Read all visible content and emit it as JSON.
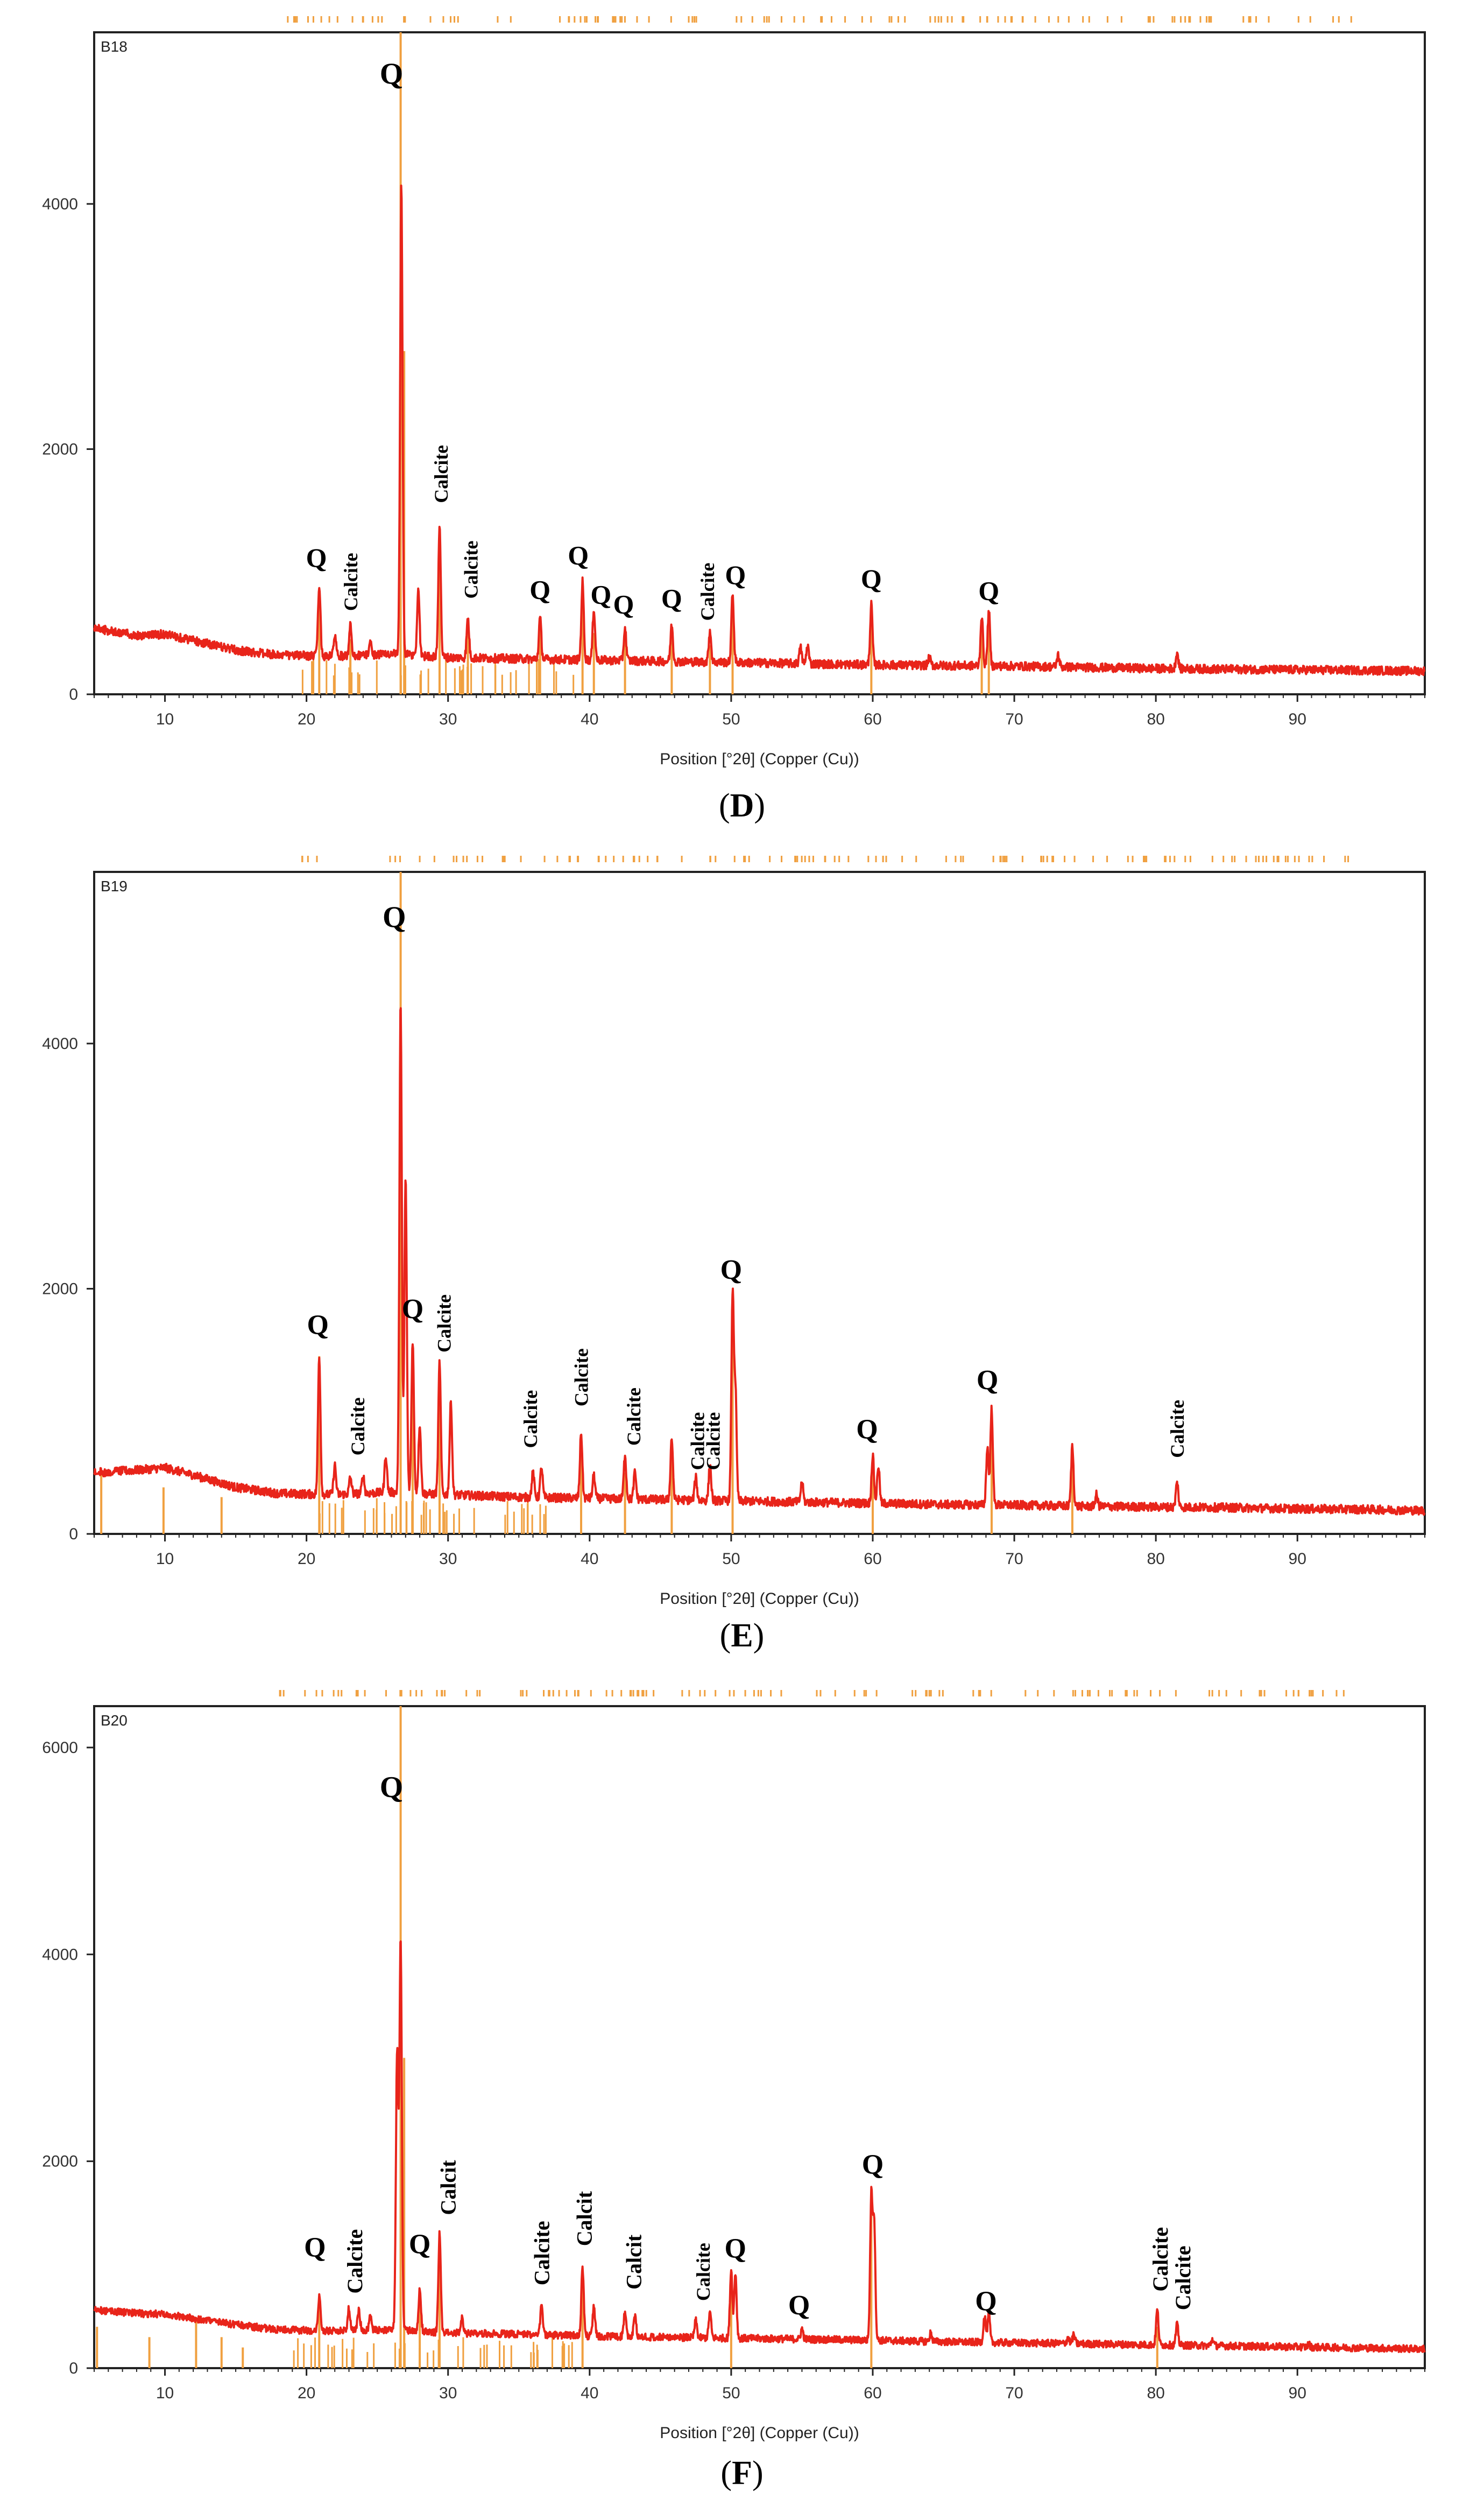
{
  "charts": [
    {
      "id": "D",
      "sample": "B18",
      "caption_letter": "D",
      "xlabel": "Position [°2θ] (Copper (Cu))",
      "chart_data": {
        "type": "line",
        "title": "B18",
        "xlabel": "Position [°2θ] (Copper (Cu))",
        "ylabel": "",
        "xlim": [
          5,
          99
        ],
        "ylim": [
          0,
          5400
        ],
        "xticks": [
          10,
          20,
          30,
          40,
          50,
          60,
          70,
          80,
          90
        ],
        "yticks": [
          0,
          2000,
          4000
        ],
        "baseline": [
          [
            5,
            540
          ],
          [
            8,
            480
          ],
          [
            10,
            490
          ],
          [
            12,
            440
          ],
          [
            15,
            360
          ],
          [
            18,
            320
          ],
          [
            22,
            310
          ],
          [
            26,
            330
          ],
          [
            30,
            300
          ],
          [
            35,
            290
          ],
          [
            40,
            280
          ],
          [
            45,
            270
          ],
          [
            50,
            260
          ],
          [
            55,
            250
          ],
          [
            60,
            240
          ],
          [
            65,
            235
          ],
          [
            70,
            230
          ],
          [
            75,
            220
          ],
          [
            80,
            210
          ],
          [
            85,
            205
          ],
          [
            90,
            200
          ],
          [
            95,
            195
          ],
          [
            99,
            190
          ]
        ],
        "peaks": [
          [
            20.9,
            900
          ],
          [
            22.0,
            480
          ],
          [
            23.1,
            560
          ],
          [
            24.5,
            420
          ],
          [
            26.7,
            4150
          ],
          [
            27.9,
            850
          ],
          [
            29.4,
            1400
          ],
          [
            31.4,
            620
          ],
          [
            36.5,
            620
          ],
          [
            39.5,
            920
          ],
          [
            40.3,
            700
          ],
          [
            42.5,
            540
          ],
          [
            45.8,
            560
          ],
          [
            48.5,
            520
          ],
          [
            50.1,
            820
          ],
          [
            54.9,
            380
          ],
          [
            55.4,
            400
          ],
          [
            59.9,
            730
          ],
          [
            64.0,
            300
          ],
          [
            67.7,
            640
          ],
          [
            68.2,
            680
          ],
          [
            73.1,
            320
          ],
          [
            81.5,
            340
          ]
        ],
        "ref_lines": [
          [
            20.9,
            850
          ],
          [
            23.1,
            450
          ],
          [
            26.65,
            5400
          ],
          [
            26.9,
            2800
          ],
          [
            29.4,
            1300
          ],
          [
            31.4,
            500
          ],
          [
            36.5,
            550
          ],
          [
            39.5,
            800
          ],
          [
            40.3,
            500
          ],
          [
            42.5,
            450
          ],
          [
            45.8,
            500
          ],
          [
            48.5,
            400
          ],
          [
            50.1,
            700
          ],
          [
            59.9,
            650
          ],
          [
            67.7,
            550
          ],
          [
            68.2,
            550
          ]
        ],
        "annotations": [
          {
            "text": "Q",
            "x": 26.0,
            "y": 4980,
            "rot": 0,
            "size": 56
          },
          {
            "text": "Q",
            "x": 20.7,
            "y": 1040,
            "rot": 0,
            "size": 50
          },
          {
            "text": "Calcite",
            "x": 23.1,
            "y": 680,
            "rot": -90,
            "size": 36
          },
          {
            "text": "Calcite",
            "x": 29.5,
            "y": 1560,
            "rot": -90,
            "size": 36
          },
          {
            "text": "Calcite",
            "x": 31.6,
            "y": 780,
            "rot": -90,
            "size": 36
          },
          {
            "text": "Q",
            "x": 36.5,
            "y": 780,
            "rot": 0,
            "size": 50
          },
          {
            "text": "Q",
            "x": 39.2,
            "y": 1060,
            "rot": 0,
            "size": 50
          },
          {
            "text": "Q",
            "x": 40.8,
            "y": 740,
            "rot": 0,
            "size": 50
          },
          {
            "text": "Q",
            "x": 42.4,
            "y": 660,
            "rot": 0,
            "size": 50
          },
          {
            "text": "Q",
            "x": 45.8,
            "y": 710,
            "rot": 0,
            "size": 50
          },
          {
            "text": "Calcite",
            "x": 48.3,
            "y": 600,
            "rot": -90,
            "size": 36
          },
          {
            "text": "Q",
            "x": 50.3,
            "y": 900,
            "rot": 0,
            "size": 50
          },
          {
            "text": "Q",
            "x": 59.9,
            "y": 870,
            "rot": 0,
            "size": 50
          },
          {
            "text": "Q",
            "x": 68.2,
            "y": 770,
            "rot": 0,
            "size": 50
          }
        ]
      }
    },
    {
      "id": "E",
      "sample": "B19",
      "caption_letter": "E",
      "xlabel": "Position [°2θ] (Copper (Cu))",
      "chart_data": {
        "type": "line",
        "title": "B19",
        "xlabel": "Position [°2θ] (Copper (Cu))",
        "ylabel": "",
        "xlim": [
          5,
          99
        ],
        "ylim": [
          0,
          5400
        ],
        "xticks": [
          10,
          20,
          30,
          40,
          50,
          60,
          70,
          80,
          90
        ],
        "yticks": [
          0,
          2000,
          4000
        ],
        "baseline": [
          [
            5,
            500
          ],
          [
            8,
            520
          ],
          [
            10,
            540
          ],
          [
            12,
            480
          ],
          [
            15,
            380
          ],
          [
            18,
            330
          ],
          [
            22,
            320
          ],
          [
            26,
            340
          ],
          [
            30,
            320
          ],
          [
            35,
            300
          ],
          [
            40,
            290
          ],
          [
            45,
            280
          ],
          [
            50,
            270
          ],
          [
            55,
            260
          ],
          [
            60,
            250
          ],
          [
            65,
            240
          ],
          [
            70,
            235
          ],
          [
            75,
            225
          ],
          [
            80,
            220
          ],
          [
            85,
            215
          ],
          [
            90,
            205
          ],
          [
            95,
            200
          ],
          [
            99,
            190
          ]
        ],
        "peaks": [
          [
            20.9,
            1450
          ],
          [
            22.0,
            560
          ],
          [
            23.1,
            460
          ],
          [
            24.0,
            470
          ],
          [
            25.6,
            640
          ],
          [
            26.65,
            4350
          ],
          [
            27.0,
            2900
          ],
          [
            27.5,
            1580
          ],
          [
            28.0,
            900
          ],
          [
            29.4,
            1400
          ],
          [
            30.2,
            1080
          ],
          [
            36.0,
            500
          ],
          [
            36.6,
            540
          ],
          [
            39.4,
            820
          ],
          [
            40.3,
            480
          ],
          [
            42.5,
            650
          ],
          [
            43.2,
            500
          ],
          [
            45.8,
            780
          ],
          [
            47.5,
            460
          ],
          [
            48.5,
            560
          ],
          [
            50.1,
            1950
          ],
          [
            50.3,
            1150
          ],
          [
            55.0,
            420
          ],
          [
            60.0,
            640
          ],
          [
            60.4,
            560
          ],
          [
            68.1,
            700
          ],
          [
            68.4,
            1020
          ],
          [
            74.1,
            720
          ],
          [
            75.8,
            320
          ],
          [
            81.5,
            420
          ]
        ],
        "ref_lines": [
          [
            5.5,
            500
          ],
          [
            9.9,
            380
          ],
          [
            14.0,
            300
          ],
          [
            20.9,
            1450
          ],
          [
            26.65,
            5400
          ],
          [
            27.5,
            1400
          ],
          [
            29.4,
            1200
          ],
          [
            39.4,
            700
          ],
          [
            42.5,
            500
          ],
          [
            45.8,
            700
          ],
          [
            50.1,
            1950
          ],
          [
            60.0,
            600
          ],
          [
            68.4,
            900
          ],
          [
            74.1,
            600
          ]
        ],
        "annotations": [
          {
            "text": "Q",
            "x": 26.2,
            "y": 4950,
            "rot": 0,
            "size": 56
          },
          {
            "text": "Q",
            "x": 20.8,
            "y": 1630,
            "rot": 0,
            "size": 52
          },
          {
            "text": "Calcite",
            "x": 23.6,
            "y": 640,
            "rot": -90,
            "size": 36
          },
          {
            "text": "Q",
            "x": 27.5,
            "y": 1760,
            "rot": 0,
            "size": 52
          },
          {
            "text": "Calcite",
            "x": 29.7,
            "y": 1480,
            "rot": -90,
            "size": 36
          },
          {
            "text": "Calcite",
            "x": 35.8,
            "y": 700,
            "rot": -90,
            "size": 36
          },
          {
            "text": "Calcite",
            "x": 39.4,
            "y": 1040,
            "rot": -90,
            "size": 36
          },
          {
            "text": "Calcite",
            "x": 43.1,
            "y": 720,
            "rot": -90,
            "size": 36
          },
          {
            "text": "Calcite",
            "x": 47.6,
            "y": 520,
            "rot": -90,
            "size": 36
          },
          {
            "text": "Calcite",
            "x": 48.7,
            "y": 520,
            "rot": -90,
            "size": 36
          },
          {
            "text": "Q",
            "x": 50.0,
            "y": 2080,
            "rot": 0,
            "size": 52
          },
          {
            "text": "Q",
            "x": 59.6,
            "y": 780,
            "rot": 0,
            "size": 52
          },
          {
            "text": "Q",
            "x": 68.1,
            "y": 1180,
            "rot": 0,
            "size": 52
          },
          {
            "text": "Calcite",
            "x": 81.5,
            "y": 620,
            "rot": -90,
            "size": 36
          }
        ]
      }
    },
    {
      "id": "F",
      "sample": "B20",
      "caption_letter": "F",
      "xlabel": "Position [°2θ] (Copper (Cu))",
      "chart_data": {
        "type": "line",
        "title": "B20",
        "xlabel": "Position [°2θ] (Copper (Cu))",
        "ylabel": "",
        "xlim": [
          5,
          99
        ],
        "ylim": [
          0,
          6400
        ],
        "xticks": [
          10,
          20,
          30,
          40,
          50,
          60,
          70,
          80,
          90
        ],
        "yticks": [
          0,
          2000,
          4000,
          6000
        ],
        "baseline": [
          [
            5,
            560
          ],
          [
            8,
            530
          ],
          [
            10,
            520
          ],
          [
            12,
            480
          ],
          [
            15,
            420
          ],
          [
            18,
            370
          ],
          [
            22,
            360
          ],
          [
            26,
            370
          ],
          [
            30,
            340
          ],
          [
            35,
            330
          ],
          [
            40,
            310
          ],
          [
            45,
            300
          ],
          [
            50,
            290
          ],
          [
            55,
            280
          ],
          [
            60,
            270
          ],
          [
            65,
            255
          ],
          [
            70,
            245
          ],
          [
            75,
            235
          ],
          [
            80,
            225
          ],
          [
            85,
            215
          ],
          [
            90,
            205
          ],
          [
            95,
            195
          ],
          [
            99,
            185
          ]
        ],
        "peaks": [
          [
            20.9,
            700
          ],
          [
            23.0,
            580
          ],
          [
            23.7,
            560
          ],
          [
            24.5,
            500
          ],
          [
            26.65,
            4150
          ],
          [
            26.4,
            3050
          ],
          [
            28.0,
            760
          ],
          [
            29.4,
            1300
          ],
          [
            31.0,
            480
          ],
          [
            36.6,
            600
          ],
          [
            39.5,
            980
          ],
          [
            40.3,
            600
          ],
          [
            42.5,
            560
          ],
          [
            43.2,
            500
          ],
          [
            47.5,
            460
          ],
          [
            48.5,
            540
          ],
          [
            50.0,
            950
          ],
          [
            50.3,
            920
          ],
          [
            55.0,
            380
          ],
          [
            59.9,
            1650
          ],
          [
            60.1,
            1400
          ],
          [
            64.1,
            340
          ],
          [
            67.9,
            500
          ],
          [
            68.2,
            520
          ],
          [
            73.8,
            300
          ],
          [
            74.2,
            320
          ],
          [
            80.1,
            560
          ],
          [
            81.5,
            420
          ],
          [
            84.0,
            280
          ],
          [
            90.8,
            230
          ]
        ],
        "ref_lines": [
          [
            5.2,
            400
          ],
          [
            8.9,
            300
          ],
          [
            12.2,
            480
          ],
          [
            14.0,
            300
          ],
          [
            15.5,
            200
          ],
          [
            20.9,
            600
          ],
          [
            26.65,
            6400
          ],
          [
            26.9,
            3000
          ],
          [
            28.0,
            600
          ],
          [
            29.4,
            1100
          ],
          [
            39.5,
            800
          ],
          [
            50.0,
            800
          ],
          [
            59.9,
            1500
          ],
          [
            80.1,
            400
          ]
        ],
        "annotations": [
          {
            "text": "Q",
            "x": 26.0,
            "y": 5520,
            "rot": 0,
            "size": 56
          },
          {
            "text": "Q",
            "x": 20.6,
            "y": 1080,
            "rot": 0,
            "size": 52
          },
          {
            "text": "Calcite",
            "x": 23.4,
            "y": 720,
            "rot": -90,
            "size": 40
          },
          {
            "text": "Q",
            "x": 28.0,
            "y": 1110,
            "rot": 0,
            "size": 52
          },
          {
            "text": "Calcit",
            "x": 30.0,
            "y": 1480,
            "rot": -90,
            "size": 40
          },
          {
            "text": "Calcite",
            "x": 36.6,
            "y": 800,
            "rot": -90,
            "size": 40
          },
          {
            "text": "Calcit",
            "x": 39.6,
            "y": 1180,
            "rot": -90,
            "size": 40
          },
          {
            "text": "Calcit",
            "x": 43.1,
            "y": 760,
            "rot": -90,
            "size": 40
          },
          {
            "text": "Calcite",
            "x": 48.0,
            "y": 650,
            "rot": -90,
            "size": 36
          },
          {
            "text": "Q",
            "x": 50.3,
            "y": 1070,
            "rot": 0,
            "size": 52
          },
          {
            "text": "Q",
            "x": 54.8,
            "y": 520,
            "rot": 0,
            "size": 52
          },
          {
            "text": "Q",
            "x": 60.0,
            "y": 1880,
            "rot": 0,
            "size": 52
          },
          {
            "text": "Q",
            "x": 68.0,
            "y": 560,
            "rot": 0,
            "size": 52
          },
          {
            "text": "Calcite",
            "x": 80.3,
            "y": 740,
            "rot": -90,
            "size": 40
          },
          {
            "text": "Calcite",
            "x": 81.9,
            "y": 560,
            "rot": -90,
            "size": 40
          }
        ]
      }
    }
  ]
}
